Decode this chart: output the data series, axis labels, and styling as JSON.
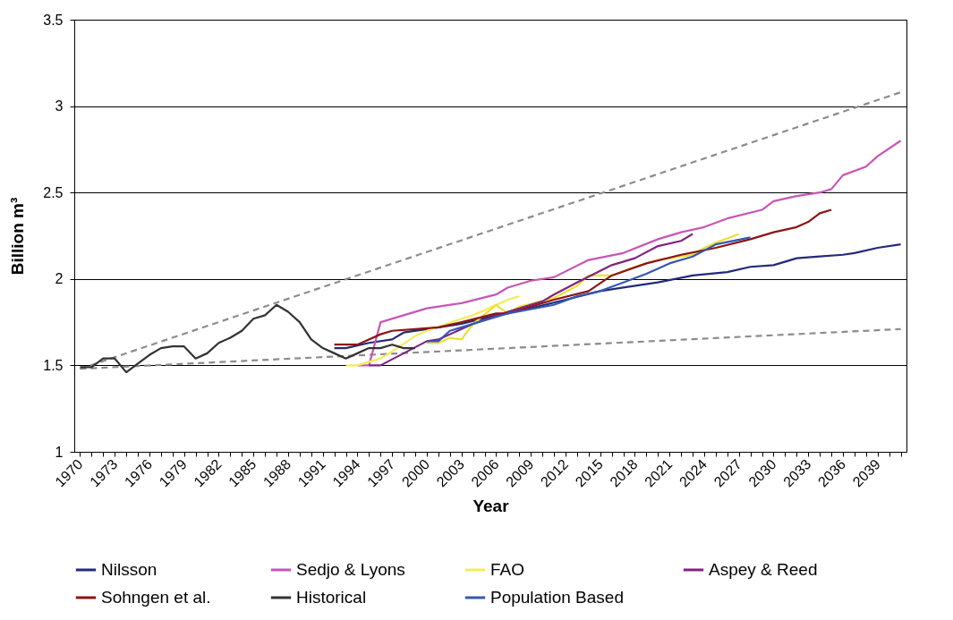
{
  "chart_data": {
    "type": "line",
    "xlabel": "Year",
    "ylabel": "Billion m³",
    "xlim": [
      1969.5,
      2041.5
    ],
    "ylim": [
      1,
      3.5
    ],
    "xticks": [
      1970,
      {
        "value": 1971,
        "label": null
      },
      {
        "value": 1972,
        "label": null
      },
      1973,
      {
        "value": 1974,
        "label": null
      },
      {
        "value": 1975,
        "label": null
      },
      1976,
      {
        "value": 1977,
        "label": null
      },
      {
        "value": 1978,
        "label": null
      },
      1979,
      {
        "value": 1980,
        "label": null
      },
      {
        "value": 1981,
        "label": null
      },
      1982,
      {
        "value": 1983,
        "label": null
      },
      {
        "value": 1984,
        "label": null
      },
      1985,
      {
        "value": 1986,
        "label": null
      },
      {
        "value": 1987,
        "label": null
      },
      1988,
      {
        "value": 1989,
        "label": null
      },
      {
        "value": 1990,
        "label": null
      },
      1991,
      {
        "value": 1992,
        "label": null
      },
      {
        "value": 1993,
        "label": null
      },
      1994,
      {
        "value": 1995,
        "label": null
      },
      {
        "value": 1996,
        "label": null
      },
      1997,
      {
        "value": 1998,
        "label": null
      },
      {
        "value": 1999,
        "label": null
      },
      2000,
      {
        "value": 2001,
        "label": null
      },
      {
        "value": 2002,
        "label": null
      },
      2003,
      {
        "value": 2004,
        "label": null
      },
      {
        "value": 2005,
        "label": null
      },
      2006,
      {
        "value": 2007,
        "label": null
      },
      {
        "value": 2008,
        "label": null
      },
      2009,
      {
        "value": 2010,
        "label": null
      },
      {
        "value": 2011,
        "label": null
      },
      2012,
      {
        "value": 2013,
        "label": null
      },
      {
        "value": 2014,
        "label": null
      },
      2015,
      {
        "value": 2016,
        "label": null
      },
      {
        "value": 2017,
        "label": null
      },
      2018,
      {
        "value": 2019,
        "label": null
      },
      {
        "value": 2020,
        "label": null
      },
      2021,
      {
        "value": 2022,
        "label": null
      },
      {
        "value": 2023,
        "label": null
      },
      2024,
      {
        "value": 2025,
        "label": null
      },
      {
        "value": 2026,
        "label": null
      },
      2027,
      {
        "value": 2028,
        "label": null
      },
      {
        "value": 2029,
        "label": null
      },
      2030,
      {
        "value": 2031,
        "label": null
      },
      {
        "value": 2032,
        "label": null
      },
      2033,
      {
        "value": 2034,
        "label": null
      },
      {
        "value": 2035,
        "label": null
      },
      2036,
      {
        "value": 2037,
        "label": null
      },
      {
        "value": 2038,
        "label": null
      },
      2039,
      {
        "value": 2040,
        "label": null
      },
      {
        "value": 2041,
        "label": null
      }
    ],
    "yticks": [
      1,
      1.5,
      2,
      2.5,
      3,
      3.5
    ],
    "grid": "y",
    "legend": "bottom",
    "marker": "none",
    "line_style": "solid",
    "series": [
      {
        "color": "#8c8c8c",
        "line_style": "dashed",
        "x": [
          1970,
          2041
        ],
        "values": [
          1.48,
          3.08
        ]
      },
      {
        "color": "#8c8c8c",
        "line_style": "dashed",
        "x": [
          1970,
          2041
        ],
        "values": [
          1.48,
          1.71
        ]
      },
      {
        "name": "Nilsson",
        "color": "#232a78",
        "x": [
          1992,
          1993,
          1995,
          1997,
          1998,
          2000,
          2003,
          2006,
          2009,
          2012,
          2015,
          2017,
          2020,
          2023,
          2026,
          2028,
          2030,
          2032,
          2034,
          2036,
          2037,
          2039,
          2041
        ],
        "values": [
          1.6,
          1.6,
          1.63,
          1.65,
          1.69,
          1.71,
          1.74,
          1.79,
          1.83,
          1.88,
          1.93,
          1.95,
          1.98,
          2.02,
          2.04,
          2.07,
          2.08,
          2.12,
          2.13,
          2.14,
          2.15,
          2.18,
          2.2
        ]
      },
      {
        "name": "Sedjo & Lyons",
        "color": "#c855b4",
        "x": [
          1994,
          1995,
          1996,
          2000,
          2003,
          2006,
          2007,
          2009,
          2011,
          2014,
          2017,
          2020,
          2022,
          2024,
          2026,
          2029,
          2030,
          2032,
          2034,
          2035,
          2036,
          2038,
          2039,
          2041
        ],
        "values": [
          1.5,
          1.5,
          1.75,
          1.83,
          1.86,
          1.91,
          1.95,
          1.99,
          2.01,
          2.11,
          2.15,
          2.23,
          2.27,
          2.3,
          2.35,
          2.4,
          2.45,
          2.48,
          2.5,
          2.52,
          2.6,
          2.65,
          2.71,
          2.8
        ]
      },
      {
        "name": "FAO",
        "color": "#f3ec5a",
        "x": [
          1993,
          1994,
          1996,
          1997,
          1999,
          2000,
          2003,
          2004,
          2006,
          2007,
          2008
        ],
        "values": [
          1.5,
          1.5,
          1.54,
          1.58,
          1.67,
          1.7,
          1.77,
          1.79,
          1.85,
          1.88,
          1.9
        ]
      },
      {
        "color": "#ece12c",
        "x": [
          2000,
          2001,
          2002,
          2003,
          2004,
          2006,
          2007,
          2008,
          2011,
          2013,
          2014,
          2016,
          2018,
          2020,
          2023,
          2024,
          2025,
          2027
        ],
        "values": [
          1.63,
          1.63,
          1.66,
          1.65,
          1.74,
          1.85,
          1.8,
          1.84,
          1.89,
          1.96,
          2.02,
          2.02,
          2.07,
          2.11,
          2.14,
          2.18,
          2.21,
          2.26
        ]
      },
      {
        "name": "Aspey & Reed",
        "color": "#7f2480",
        "x": [
          1995,
          1996,
          1998,
          2000,
          2001,
          2004,
          2007,
          2010,
          2011,
          2013,
          2016,
          2018,
          2020,
          2022,
          2023
        ],
        "values": [
          1.5,
          1.5,
          1.57,
          1.64,
          1.65,
          1.74,
          1.81,
          1.87,
          1.91,
          1.98,
          2.08,
          2.12,
          2.19,
          2.22,
          2.26
        ]
      },
      {
        "name": "Sohngen et al.",
        "color": "#8b1515",
        "x": [
          1992,
          1994,
          1996,
          1997,
          1999,
          2001,
          2003,
          2006,
          2007,
          2009,
          2011,
          2014,
          2016,
          2019,
          2022,
          2025,
          2028,
          2030,
          2032,
          2033,
          2034,
          2035
        ],
        "values": [
          1.62,
          1.62,
          1.68,
          1.7,
          1.71,
          1.72,
          1.75,
          1.8,
          1.8,
          1.84,
          1.88,
          1.93,
          2.02,
          2.09,
          2.14,
          2.18,
          2.23,
          2.27,
          2.3,
          2.33,
          2.38,
          2.4
        ]
      },
      {
        "name": "Historical",
        "color": "#333333",
        "x": [
          1970,
          1971,
          1972,
          1973,
          1974,
          1975,
          1976,
          1977,
          1978,
          1979,
          1980,
          1981,
          1982,
          1983,
          1984,
          1985,
          1986,
          1987,
          1988,
          1989,
          1990,
          1991,
          1992,
          1993,
          1994,
          1995,
          1996,
          1997,
          1998,
          1999
        ],
        "values": [
          1.49,
          1.49,
          1.54,
          1.54,
          1.46,
          1.51,
          1.56,
          1.6,
          1.61,
          1.61,
          1.54,
          1.57,
          1.63,
          1.66,
          1.7,
          1.77,
          1.79,
          1.85,
          1.81,
          1.75,
          1.65,
          1.6,
          1.57,
          1.54,
          1.57,
          1.6,
          1.6,
          1.62,
          1.6,
          1.6
        ]
      },
      {
        "name": "Population Based",
        "color": "#3558b4",
        "x": [
          2000,
          2001,
          2002,
          2003,
          2006,
          2007,
          2011,
          2013,
          2015,
          2017,
          2019,
          2021,
          2023,
          2025,
          2028
        ],
        "values": [
          1.64,
          1.64,
          1.7,
          1.72,
          1.78,
          1.8,
          1.85,
          1.9,
          1.93,
          1.98,
          2.03,
          2.09,
          2.13,
          2.2,
          2.24
        ]
      }
    ]
  }
}
